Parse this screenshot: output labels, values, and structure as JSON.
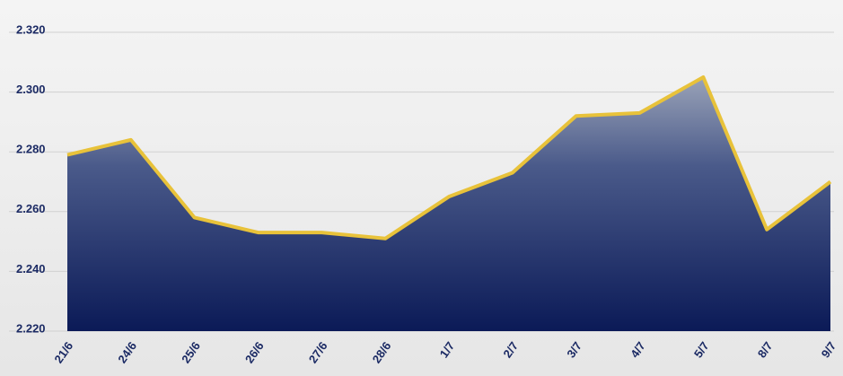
{
  "chart_data": {
    "type": "area",
    "categories": [
      "21/6",
      "24/6",
      "25/6",
      "26/6",
      "27/6",
      "28/6",
      "1/7",
      "2/7",
      "3/7",
      "4/7",
      "5/7",
      "8/7",
      "9/7"
    ],
    "values": [
      2279,
      2284,
      2258,
      2253,
      2253,
      2251,
      2265,
      2273,
      2292,
      2293,
      2305,
      2254,
      2270
    ],
    "color": "#e8c23a",
    "ylim": [
      2220,
      2320
    ],
    "yticks": [
      {
        "value": 2220,
        "label": "2.220"
      },
      {
        "value": 2240,
        "label": "2.240"
      },
      {
        "value": 2260,
        "label": "2.260"
      },
      {
        "value": 2280,
        "label": "2.280"
      },
      {
        "value": 2300,
        "label": "2.300"
      },
      {
        "value": 2320,
        "label": "2.320"
      }
    ],
    "grid": true
  }
}
